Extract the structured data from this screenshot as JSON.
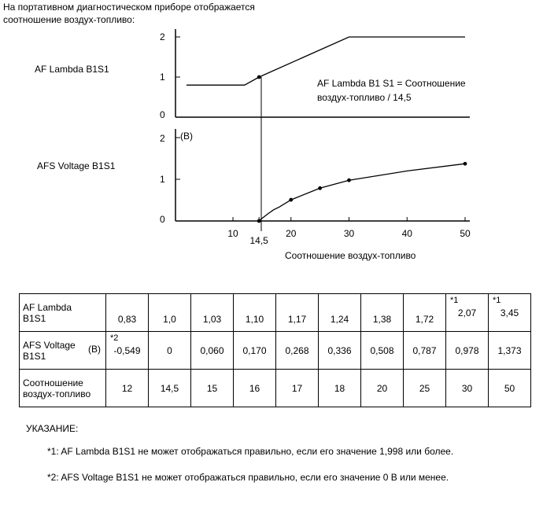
{
  "intro": {
    "line1": "На портативном диагностическом приборе отображается",
    "line2": "соотношение воздух-топливо:"
  },
  "chart_data": {
    "type": "line",
    "xlabel": "Соотношение воздух-топливо",
    "x_ticks": [
      "10",
      "14,5",
      "20",
      "30",
      "40",
      "50"
    ],
    "xlim": [
      2,
      50
    ],
    "top": {
      "label": "AF Lambda B1S1",
      "y_ticks": [
        "0",
        "1",
        "2"
      ],
      "ylim": [
        0,
        2
      ],
      "annotation_line1": "AF Lambda B1 S1 = Соотношение",
      "annotation_line2": "воздух-топливо / 14,5",
      "line": [
        [
          2,
          0.8
        ],
        [
          12,
          0.8
        ],
        [
          14.5,
          1.0
        ],
        [
          30,
          2.0
        ],
        [
          50,
          2.0
        ]
      ],
      "points": [
        [
          14.5,
          1.0
        ]
      ]
    },
    "bottom": {
      "label": "AFS Voltage B1S1",
      "unit": "(В)",
      "y_ticks": [
        "0",
        "1",
        "2"
      ],
      "ylim": [
        0,
        2
      ],
      "curve": [
        [
          14.5,
          0
        ],
        [
          15,
          0.06
        ],
        [
          16,
          0.17
        ],
        [
          17,
          0.268
        ],
        [
          18,
          0.336
        ],
        [
          20,
          0.508
        ],
        [
          25,
          0.787
        ],
        [
          30,
          0.978
        ],
        [
          40,
          1.2
        ],
        [
          50,
          1.373
        ]
      ],
      "points": [
        [
          20,
          0.508
        ],
        [
          25,
          0.787
        ],
        [
          30,
          0.978
        ],
        [
          50,
          1.373
        ]
      ]
    }
  },
  "table": {
    "row1": {
      "label_line1": "AF Lambda",
      "label_line2": "B1S1",
      "values": [
        "0,83",
        "1,0",
        "1,03",
        "1,10",
        "1,17",
        "1,24",
        "1,38",
        "1,72",
        "2,07",
        "3,45"
      ],
      "notes": [
        "",
        "",
        "",
        "",
        "",
        "",
        "",
        "",
        "*1",
        "*1"
      ]
    },
    "row2": {
      "label_line1": "AFS Voltage",
      "label_line2": "B1S1",
      "unit": "(В)",
      "values": [
        "-0,549",
        "0",
        "0,060",
        "0,170",
        "0,268",
        "0,336",
        "0,508",
        "0,787",
        "0,978",
        "1,373"
      ],
      "notes": [
        "*2",
        "",
        "",
        "",
        "",
        "",
        "",
        "",
        "",
        ""
      ]
    },
    "row3": {
      "label_line1": "Соотношение",
      "label_line2": "воздух-топливо",
      "values": [
        "12",
        "14,5",
        "15",
        "16",
        "17",
        "18",
        "20",
        "25",
        "30",
        "50"
      ]
    }
  },
  "notes": {
    "title": "УКАЗАНИЕ:",
    "n1": "*1: AF Lambda B1S1 не может отображаться правильно, если его значение 1,998 или более.",
    "n2": "*2: AFS Voltage B1S1 не может отображаться правильно, если его значение 0 В или менее."
  }
}
